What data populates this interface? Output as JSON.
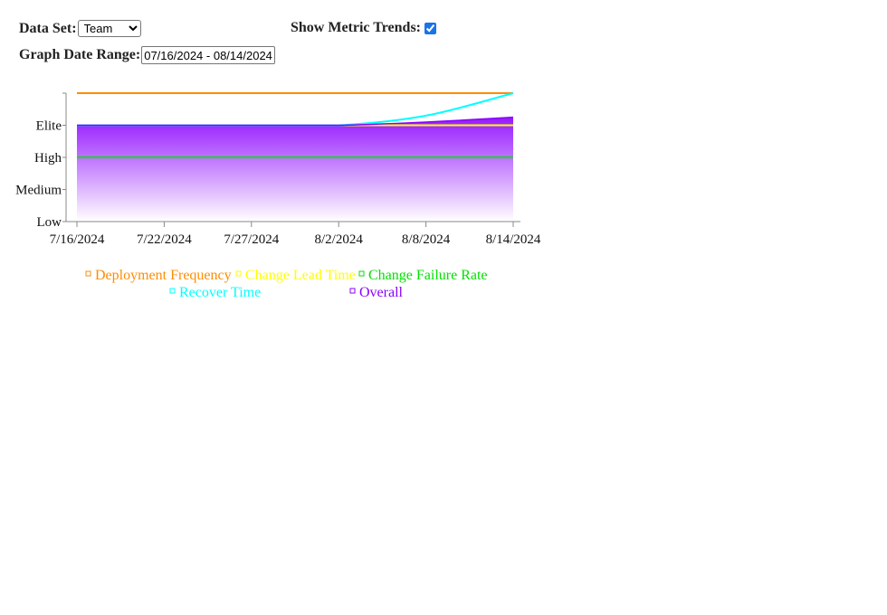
{
  "controls": {
    "dataset_label": "Data Set:",
    "dataset_value": "Team",
    "dataset_options": [
      "Team"
    ],
    "trends_label": "Show Metric Trends:",
    "trends_checked": true,
    "range_label": "Graph Date Range:",
    "range_value": "07/16/2024 - 08/14/2024"
  },
  "chart_data": {
    "type": "line",
    "x_ticks": [
      "7/16/2024",
      "7/22/2024",
      "7/27/2024",
      "8/2/2024",
      "8/8/2024",
      "8/14/2024"
    ],
    "y_ticks": [
      "Low",
      "Medium",
      "High",
      "Elite"
    ],
    "ylim": [
      0,
      4
    ],
    "x": [
      "7/16/2024",
      "7/22/2024",
      "7/27/2024",
      "8/2/2024",
      "8/8/2024",
      "8/14/2024"
    ],
    "series": [
      {
        "name": "Deployment Frequency",
        "color": "#ff8c00",
        "values": [
          4,
          4,
          4,
          4,
          4,
          4
        ]
      },
      {
        "name": "Change Lead Time",
        "color": "#ffff00",
        "values": [
          3,
          3,
          3,
          3,
          3,
          3
        ]
      },
      {
        "name": "Change Failure Rate",
        "color": "#00e000",
        "values": [
          2,
          2,
          2,
          2,
          2,
          2
        ]
      },
      {
        "name": "Recover Time",
        "color": "#00ffff",
        "values": [
          3,
          3,
          3,
          3,
          3.3,
          4
        ]
      },
      {
        "name": "Overall",
        "color": "#8a00ff",
        "values": [
          3,
          3,
          3,
          3,
          3.1,
          3.25
        ]
      }
    ],
    "legend": [
      "Deployment Frequency",
      "Change Lead Time",
      "Change Failure Rate",
      "Recover Time",
      "Overall"
    ],
    "legend_placement": "bottom"
  }
}
